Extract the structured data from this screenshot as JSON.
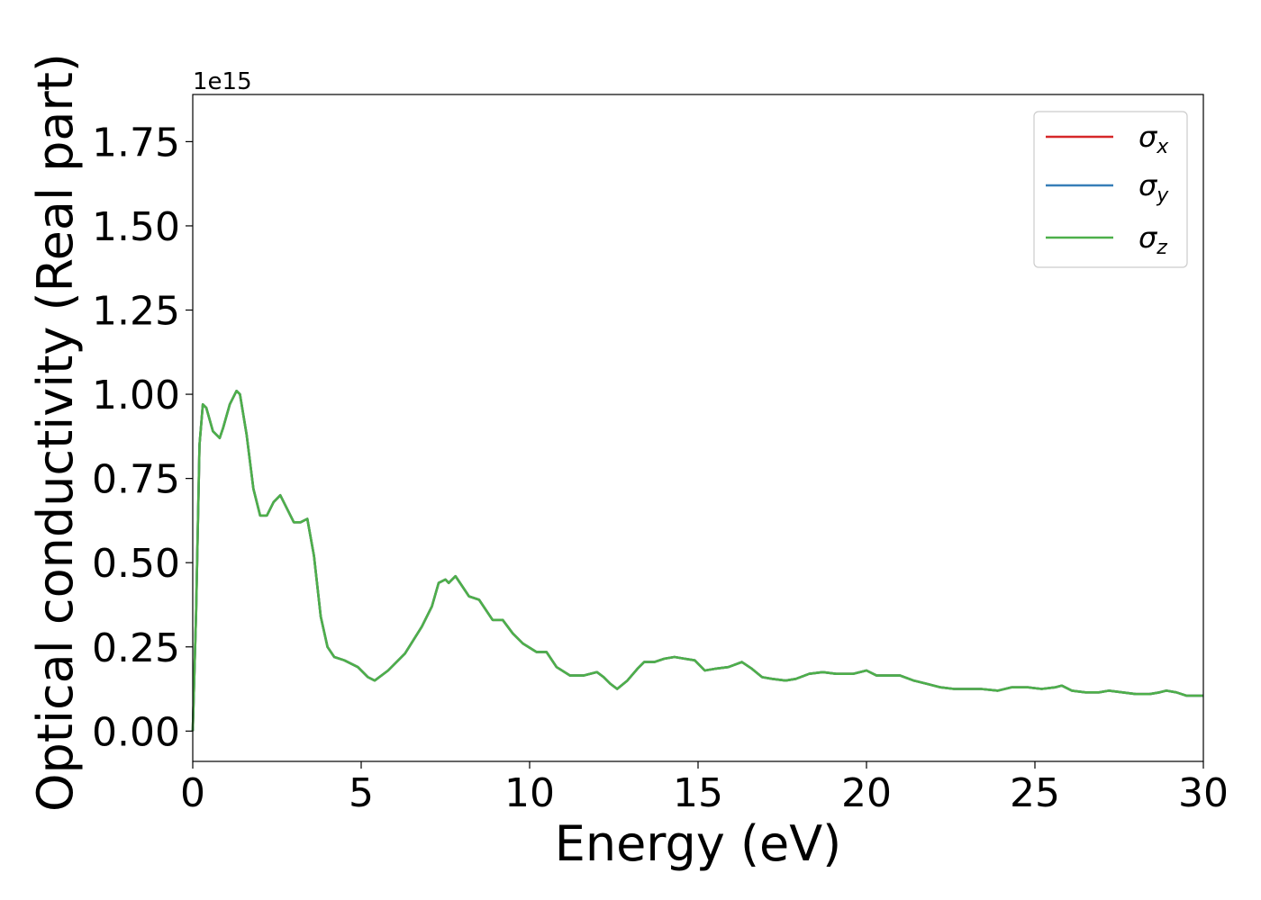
{
  "chart_data": {
    "type": "line",
    "title": "",
    "xlabel": "Energy (eV)",
    "ylabel": "Optical conductivity (Real part)",
    "y_offset_label": "1e15",
    "y_scale": 1000000000000000.0,
    "xlim": [
      0,
      30
    ],
    "ylim": [
      -0.09,
      1.89
    ],
    "x_ticks": [
      0,
      5,
      10,
      15,
      20,
      25,
      30
    ],
    "x_tick_labels": [
      "0",
      "5",
      "10",
      "15",
      "20",
      "25",
      "30"
    ],
    "y_ticks": [
      0,
      0.25,
      0.5,
      0.75,
      1.0,
      1.25,
      1.5,
      1.75
    ],
    "y_tick_labels": [
      "0.00",
      "0.25",
      "0.50",
      "0.75",
      "1.00",
      "1.25",
      "1.50",
      "1.75"
    ],
    "grid": false,
    "legend_position": "top-right",
    "legend": [
      {
        "symbol": "σ",
        "sub": "x",
        "color": "#d62728"
      },
      {
        "symbol": "σ",
        "sub": "y",
        "color": "#377eb8"
      },
      {
        "symbol": "σ",
        "sub": "z",
        "color": "#4daf4a"
      }
    ],
    "x": [
      0,
      0.1,
      0.2,
      0.3,
      0.4,
      0.6,
      0.8,
      0.9,
      1.1,
      1.3,
      1.4,
      1.6,
      1.8,
      2.0,
      2.2,
      2.4,
      2.6,
      2.8,
      3.0,
      3.2,
      3.4,
      3.6,
      3.8,
      4.0,
      4.2,
      4.5,
      4.9,
      5.2,
      5.4,
      5.8,
      6.3,
      6.8,
      7.1,
      7.3,
      7.5,
      7.6,
      7.8,
      8.0,
      8.2,
      8.5,
      8.7,
      8.9,
      9.2,
      9.5,
      9.8,
      10.2,
      10.5,
      10.8,
      11.2,
      11.6,
      12.0,
      12.2,
      12.4,
      12.6,
      12.9,
      13.2,
      13.4,
      13.7,
      14.0,
      14.3,
      14.6,
      14.9,
      15.2,
      15.5,
      15.9,
      16.3,
      16.6,
      16.9,
      17.2,
      17.6,
      17.9,
      18.3,
      18.7,
      19.1,
      19.6,
      20.0,
      20.3,
      20.6,
      21.0,
      21.4,
      21.8,
      22.2,
      22.6,
      23.0,
      23.4,
      23.9,
      24.3,
      24.8,
      25.2,
      25.6,
      25.8,
      26.1,
      26.5,
      26.9,
      27.2,
      27.6,
      28.0,
      28.4,
      28.7,
      28.9,
      29.2,
      29.5,
      29.8,
      30.0
    ],
    "series": [
      {
        "name": "σx",
        "color": "#d62728",
        "y": [
          0.0,
          0.35,
          0.85,
          0.97,
          0.96,
          0.89,
          0.87,
          0.9,
          0.97,
          1.01,
          1.0,
          0.88,
          0.72,
          0.64,
          0.64,
          0.68,
          0.7,
          0.66,
          0.62,
          0.62,
          0.63,
          0.52,
          0.34,
          0.25,
          0.22,
          0.21,
          0.19,
          0.16,
          0.15,
          0.18,
          0.23,
          0.31,
          0.37,
          0.44,
          0.45,
          0.44,
          0.46,
          0.43,
          0.4,
          0.39,
          0.36,
          0.33,
          0.33,
          0.29,
          0.26,
          0.235,
          0.235,
          0.19,
          0.165,
          0.165,
          0.175,
          0.16,
          0.14,
          0.125,
          0.15,
          0.185,
          0.205,
          0.205,
          0.215,
          0.22,
          0.215,
          0.21,
          0.18,
          0.185,
          0.19,
          0.205,
          0.185,
          0.16,
          0.155,
          0.15,
          0.155,
          0.17,
          0.175,
          0.17,
          0.17,
          0.18,
          0.165,
          0.165,
          0.165,
          0.15,
          0.14,
          0.13,
          0.125,
          0.125,
          0.125,
          0.12,
          0.13,
          0.13,
          0.125,
          0.13,
          0.135,
          0.12,
          0.115,
          0.115,
          0.12,
          0.115,
          0.11,
          0.11,
          0.115,
          0.12,
          0.115,
          0.105,
          0.105,
          0.105
        ]
      },
      {
        "name": "σy",
        "color": "#377eb8",
        "y": [
          0.0,
          0.35,
          0.85,
          0.97,
          0.96,
          0.89,
          0.87,
          0.9,
          0.97,
          1.01,
          1.0,
          0.88,
          0.72,
          0.64,
          0.64,
          0.68,
          0.7,
          0.66,
          0.62,
          0.62,
          0.63,
          0.52,
          0.34,
          0.25,
          0.22,
          0.21,
          0.19,
          0.16,
          0.15,
          0.18,
          0.23,
          0.31,
          0.37,
          0.44,
          0.45,
          0.44,
          0.46,
          0.43,
          0.4,
          0.39,
          0.36,
          0.33,
          0.33,
          0.29,
          0.26,
          0.235,
          0.235,
          0.19,
          0.165,
          0.165,
          0.175,
          0.16,
          0.14,
          0.125,
          0.15,
          0.185,
          0.205,
          0.205,
          0.215,
          0.22,
          0.215,
          0.21,
          0.18,
          0.185,
          0.19,
          0.205,
          0.185,
          0.16,
          0.155,
          0.15,
          0.155,
          0.17,
          0.175,
          0.17,
          0.17,
          0.18,
          0.165,
          0.165,
          0.165,
          0.15,
          0.14,
          0.13,
          0.125,
          0.125,
          0.125,
          0.12,
          0.13,
          0.13,
          0.125,
          0.13,
          0.135,
          0.12,
          0.115,
          0.115,
          0.12,
          0.115,
          0.11,
          0.11,
          0.115,
          0.12,
          0.115,
          0.105,
          0.105,
          0.105
        ]
      },
      {
        "name": "σz",
        "color": "#4daf4a",
        "y": [
          0.0,
          0.35,
          0.85,
          0.97,
          0.96,
          0.89,
          0.87,
          0.9,
          0.97,
          1.01,
          1.0,
          0.88,
          0.72,
          0.64,
          0.64,
          0.68,
          0.7,
          0.66,
          0.62,
          0.62,
          0.63,
          0.52,
          0.34,
          0.25,
          0.22,
          0.21,
          0.19,
          0.16,
          0.15,
          0.18,
          0.23,
          0.31,
          0.37,
          0.44,
          0.45,
          0.44,
          0.46,
          0.43,
          0.4,
          0.39,
          0.36,
          0.33,
          0.33,
          0.29,
          0.26,
          0.235,
          0.235,
          0.19,
          0.165,
          0.165,
          0.175,
          0.16,
          0.14,
          0.125,
          0.15,
          0.185,
          0.205,
          0.205,
          0.215,
          0.22,
          0.215,
          0.21,
          0.18,
          0.185,
          0.19,
          0.205,
          0.185,
          0.16,
          0.155,
          0.15,
          0.155,
          0.17,
          0.175,
          0.17,
          0.17,
          0.18,
          0.165,
          0.165,
          0.165,
          0.15,
          0.14,
          0.13,
          0.125,
          0.125,
          0.125,
          0.12,
          0.13,
          0.13,
          0.125,
          0.13,
          0.135,
          0.12,
          0.115,
          0.115,
          0.12,
          0.115,
          0.11,
          0.11,
          0.115,
          0.12,
          0.115,
          0.105,
          0.105,
          0.105
        ]
      }
    ]
  }
}
